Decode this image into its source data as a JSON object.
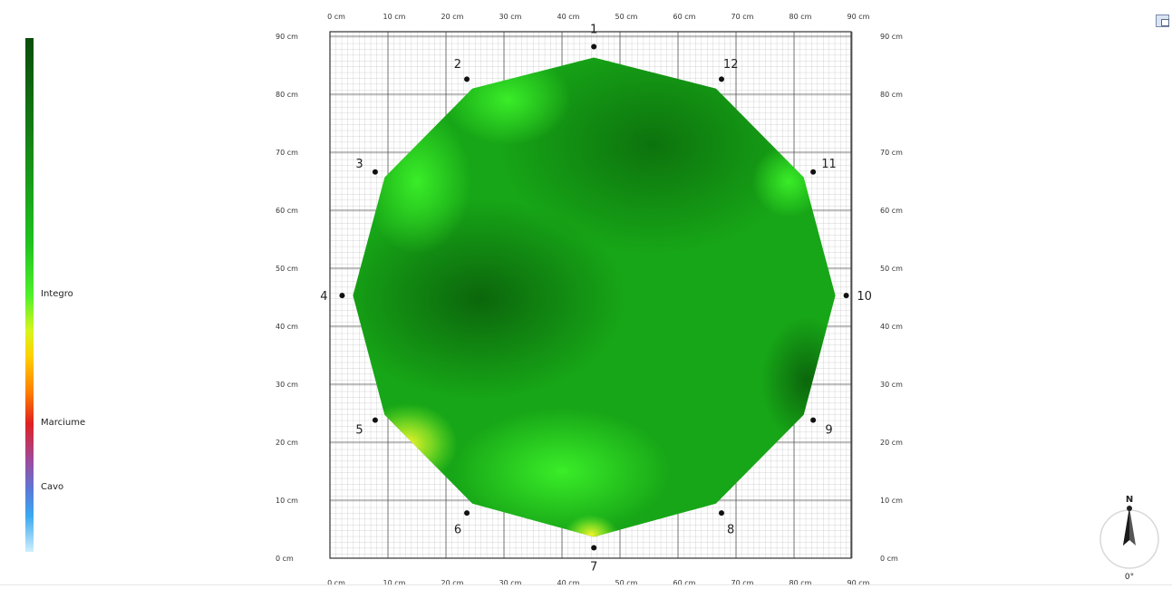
{
  "legend": {
    "labels": [
      {
        "text": "Integro",
        "value": 0.5
      },
      {
        "text": "Marciume",
        "value": 0.75
      },
      {
        "text": "Cavo",
        "value": 0.875
      }
    ]
  },
  "axis": {
    "x_ticks": [
      "0 cm",
      "10 cm",
      "20 cm",
      "30 cm",
      "40 cm",
      "50 cm",
      "60 cm",
      "70 cm",
      "80 cm",
      "90 cm"
    ],
    "y_ticks": [
      "0 cm",
      "10 cm",
      "20 cm",
      "30 cm",
      "40 cm",
      "50 cm",
      "60 cm",
      "70 cm",
      "80 cm",
      "90 cm"
    ]
  },
  "sensors": [
    {
      "label": "1",
      "x": 45.5,
      "y": 88.2
    },
    {
      "label": "2",
      "x": 23.6,
      "y": 82.6
    },
    {
      "label": "3",
      "x": 7.8,
      "y": 66.6
    },
    {
      "label": "4",
      "x": 2.1,
      "y": 45.3
    },
    {
      "label": "5",
      "x": 7.8,
      "y": 23.8
    },
    {
      "label": "6",
      "x": 23.6,
      "y": 7.8
    },
    {
      "label": "7",
      "x": 45.5,
      "y": 1.8
    },
    {
      "label": "8",
      "x": 67.5,
      "y": 7.8
    },
    {
      "label": "9",
      "x": 83.3,
      "y": 23.8
    },
    {
      "label": "10",
      "x": 89.0,
      "y": 45.3
    },
    {
      "label": "11",
      "x": 83.3,
      "y": 66.6
    },
    {
      "label": "12",
      "x": 67.5,
      "y": 82.6
    }
  ],
  "compass": {
    "north_label": "N",
    "angle_text": "0°"
  },
  "colors": {
    "healthy": "#17a317",
    "decay": "#e02020",
    "cavity": "#3aa8f0",
    "highlight": "#f0f020"
  }
}
